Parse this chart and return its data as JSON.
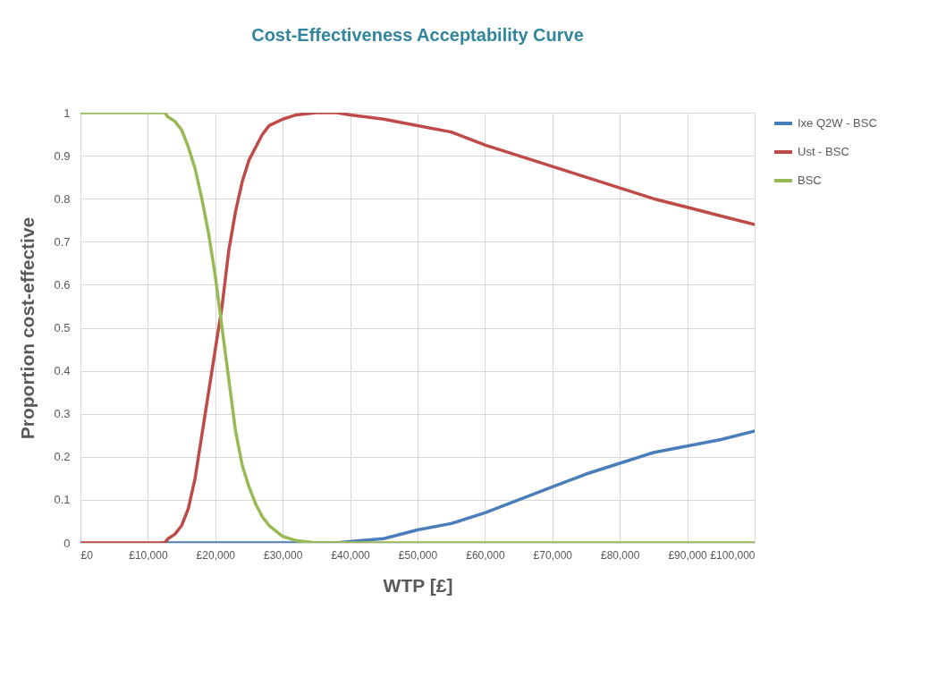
{
  "chart_data": {
    "type": "line",
    "title": "Cost-Effectiveness Acceptability Curve",
    "xlabel": "WTP [£]",
    "ylabel": "Proportion cost-effective",
    "x": [
      0,
      10000,
      12000,
      12500,
      13000,
      14000,
      15000,
      16000,
      17000,
      18000,
      19000,
      20000,
      21000,
      22000,
      23000,
      24000,
      25000,
      26000,
      27000,
      28000,
      30000,
      32000,
      35000,
      38000,
      40000,
      45000,
      50000,
      55000,
      60000,
      65000,
      70000,
      75000,
      80000,
      85000,
      90000,
      95000,
      100000
    ],
    "series": [
      {
        "name": "Ixe Q2W - BSC",
        "color": "#4a7ebb",
        "values": [
          null,
          null,
          0,
          0,
          0,
          0,
          0,
          0,
          0,
          0,
          0,
          0,
          0,
          0,
          0,
          0,
          0,
          0,
          0,
          0,
          0,
          0,
          0,
          0,
          0.003,
          0.01,
          0.03,
          0.045,
          0.07,
          0.1,
          0.13,
          0.16,
          0.185,
          0.21,
          0.225,
          0.24,
          0.26
        ]
      },
      {
        "name": "Ust - BSC",
        "color": "#be4b48",
        "values": [
          0,
          0,
          0,
          0,
          0.01,
          0.02,
          0.04,
          0.08,
          0.15,
          0.25,
          0.35,
          0.45,
          0.55,
          0.68,
          0.77,
          0.84,
          0.89,
          0.92,
          0.95,
          0.97,
          0.985,
          0.995,
          1,
          1,
          0.995,
          0.985,
          0.97,
          0.955,
          0.925,
          0.9,
          0.875,
          0.85,
          0.825,
          0.8,
          0.78,
          0.76,
          0.74
        ]
      },
      {
        "name": "BSC",
        "color": "#98b954",
        "values": [
          1,
          1,
          1,
          1,
          0.99,
          0.98,
          0.96,
          0.92,
          0.87,
          0.8,
          0.72,
          0.62,
          0.5,
          0.38,
          0.26,
          0.18,
          0.13,
          0.09,
          0.06,
          0.04,
          0.015,
          0.005,
          0,
          0,
          0,
          0,
          0,
          0,
          0,
          0,
          0,
          0,
          0,
          0,
          0,
          0,
          0
        ]
      }
    ],
    "xlim": [
      0,
      100000
    ],
    "xticks": [
      {
        "value": 0,
        "label": "£0"
      },
      {
        "value": 10000,
        "label": "£10,000"
      },
      {
        "value": 20000,
        "label": "£20,000"
      },
      {
        "value": 30000,
        "label": "£30,000"
      },
      {
        "value": 40000,
        "label": "£40,000"
      },
      {
        "value": 50000,
        "label": "£50,000"
      },
      {
        "value": 60000,
        "label": "£60,000"
      },
      {
        "value": 70000,
        "label": "£70,000"
      },
      {
        "value": 80000,
        "label": "£80,000"
      },
      {
        "value": 90000,
        "label": "£90,000"
      },
      {
        "value": 100000,
        "label": "£100,000"
      }
    ],
    "ylim": [
      0,
      1
    ],
    "yticks": [
      0,
      0.1,
      0.2,
      0.3,
      0.4,
      0.5,
      0.6,
      0.7,
      0.8,
      0.9,
      1
    ],
    "grid": true,
    "legend": "right",
    "marker": "none",
    "line_style": "solid"
  }
}
